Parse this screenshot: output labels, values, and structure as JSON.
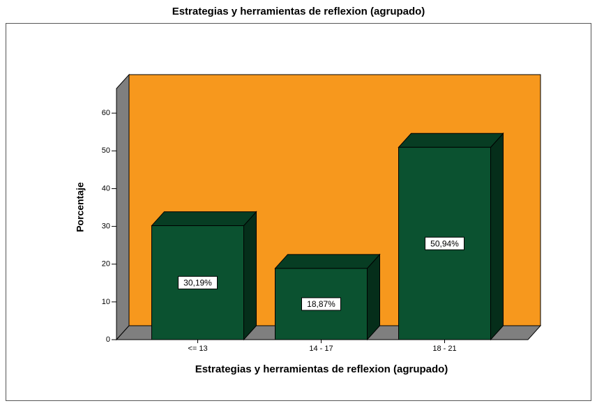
{
  "chart_data": {
    "type": "bar3d",
    "title": "Estrategias y herramientas de reflexion (agrupado)",
    "x_label": "Estrategias y herramientas de reflexion (agrupado)",
    "y_label": "Porcentaje",
    "categories": [
      "<= 13",
      "14 - 17",
      "18 - 21"
    ],
    "values": [
      30.19,
      18.87,
      50.94
    ],
    "value_labels": [
      "30,19%",
      "18,87%",
      "50,94%"
    ],
    "color": "#0b5230",
    "background": "#f7981d",
    "ylim": [
      0,
      66.5
    ],
    "yticks": [
      0,
      10,
      20,
      30,
      40,
      50,
      60
    ]
  }
}
